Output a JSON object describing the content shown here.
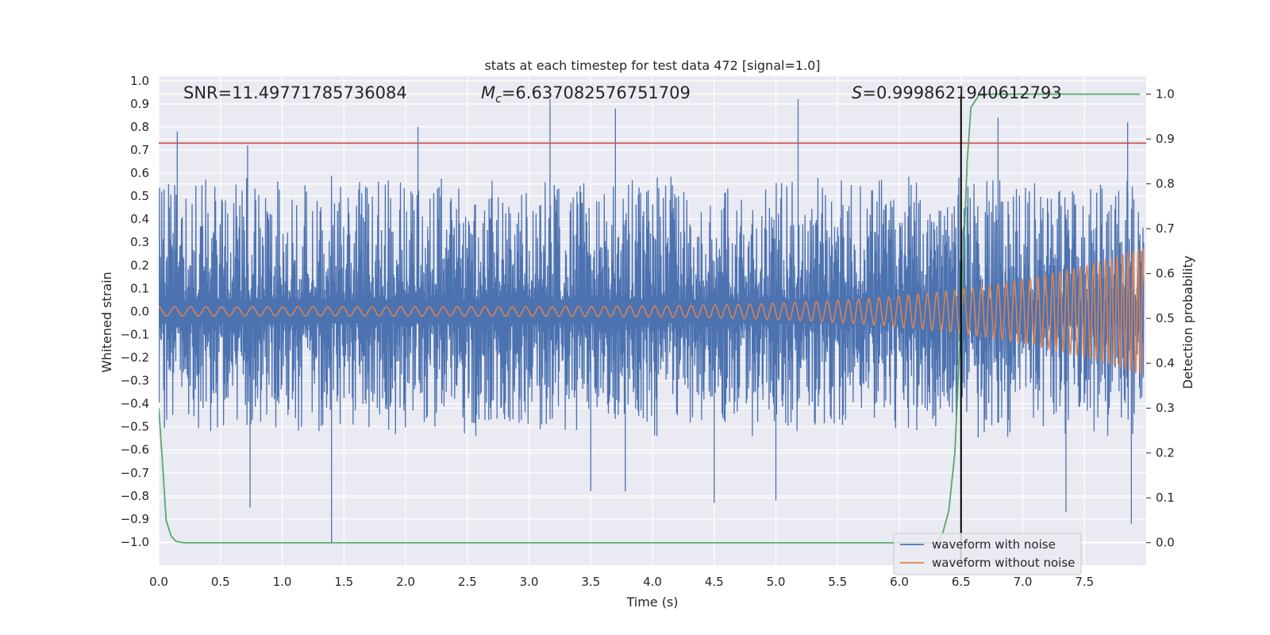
{
  "chart_data": {
    "type": "line",
    "title": "stats at each timestep for test data 472 [signal=1.0]",
    "xlabel": "Time (s)",
    "ylabel": "Whitened strain",
    "y2label": "Detection probability",
    "xlim": [
      0.0,
      8.0
    ],
    "ylim": [
      -1.1,
      1.02
    ],
    "y2lim": [
      -0.05,
      1.04
    ],
    "x_ticks": [
      0.0,
      0.5,
      1.0,
      1.5,
      2.0,
      2.5,
      3.0,
      3.5,
      4.0,
      4.5,
      5.0,
      5.5,
      6.0,
      6.5,
      7.0,
      7.5
    ],
    "x_tick_labels": [
      "0.0",
      "0.5",
      "1.0",
      "1.5",
      "2.0",
      "2.5",
      "3.0",
      "3.5",
      "4.0",
      "4.5",
      "5.0",
      "5.5",
      "6.0",
      "6.5",
      "7.0",
      "7.5"
    ],
    "y_ticks": [
      1.0,
      0.9,
      0.8,
      0.7,
      0.6,
      0.5,
      0.4,
      0.3,
      0.2,
      0.1,
      0.0,
      -0.1,
      -0.2,
      -0.3,
      -0.4,
      -0.5,
      -0.6,
      -0.7,
      -0.8,
      -0.9,
      -1.0
    ],
    "y_tick_labels": [
      "1.0",
      "0.9",
      "0.8",
      "0.7",
      "0.6",
      "0.5",
      "0.4",
      "0.3",
      "0.2",
      "0.1",
      "0.0",
      "−0.1",
      "−0.2",
      "−0.3",
      "−0.4",
      "−0.5",
      "−0.6",
      "−0.7",
      "−0.8",
      "−0.9",
      "−1.0"
    ],
    "y2_ticks": [
      1.0,
      0.9,
      0.8,
      0.7,
      0.6,
      0.5,
      0.4,
      0.3,
      0.2,
      0.1,
      0.0
    ],
    "y2_tick_labels": [
      "1.0",
      "0.9",
      "0.8",
      "0.7",
      "0.6",
      "0.5",
      "0.4",
      "0.3",
      "0.2",
      "0.1",
      "0.0"
    ],
    "grid": true,
    "legend_position": "lower-right",
    "annotations": {
      "snr": "SNR=11.49771785736084",
      "mc_symbol": "M",
      "mc_sub": "c",
      "mc_value": "=6.637082576751709",
      "s_symbol": "S",
      "s_value": "=0.9998621940612793"
    },
    "threshold_line": {
      "y": 0.73,
      "color": "#c44e52"
    },
    "vertical_line": {
      "x": 6.5,
      "color": "#000000"
    },
    "series": [
      {
        "name": "waveform with noise",
        "color": "#4c72b0",
        "axis": "left",
        "envelope_hi": 0.5,
        "envelope_lo": -0.45,
        "spikes": [
          {
            "x": 0.15,
            "y": 0.78
          },
          {
            "x": 0.72,
            "y": 0.72
          },
          {
            "x": 0.74,
            "y": -0.85
          },
          {
            "x": 1.4,
            "y": -1.0
          },
          {
            "x": 2.1,
            "y": 0.8
          },
          {
            "x": 3.17,
            "y": 0.92
          },
          {
            "x": 3.5,
            "y": -0.78
          },
          {
            "x": 3.7,
            "y": 0.88
          },
          {
            "x": 3.78,
            "y": -0.78
          },
          {
            "x": 4.5,
            "y": -0.83
          },
          {
            "x": 5.0,
            "y": -0.82
          },
          {
            "x": 5.18,
            "y": 0.92
          },
          {
            "x": 6.8,
            "y": 0.84
          },
          {
            "x": 7.35,
            "y": -0.87
          },
          {
            "x": 7.85,
            "y": 0.82
          },
          {
            "x": 7.88,
            "y": -0.92
          }
        ]
      },
      {
        "name": "waveform without noise",
        "color": "#dd8452",
        "axis": "left",
        "amp_start": 0.02,
        "amp_end": 0.28
      },
      {
        "name": "detection probability",
        "color": "#55a868",
        "axis": "right",
        "x": [
          0.0,
          0.03,
          0.06,
          0.1,
          0.14,
          0.2,
          0.3,
          1.0,
          3.0,
          6.0,
          6.3,
          6.35,
          6.4,
          6.45,
          6.5,
          6.55,
          6.58,
          6.65,
          7.0,
          7.5,
          7.95
        ],
        "values": [
          0.3,
          0.18,
          0.05,
          0.015,
          0.003,
          0.0,
          0.0,
          0.0,
          0.0,
          0.0,
          0.0,
          0.02,
          0.07,
          0.2,
          0.5,
          0.85,
          0.97,
          1.0,
          1.0,
          1.0,
          1.0
        ]
      }
    ]
  }
}
